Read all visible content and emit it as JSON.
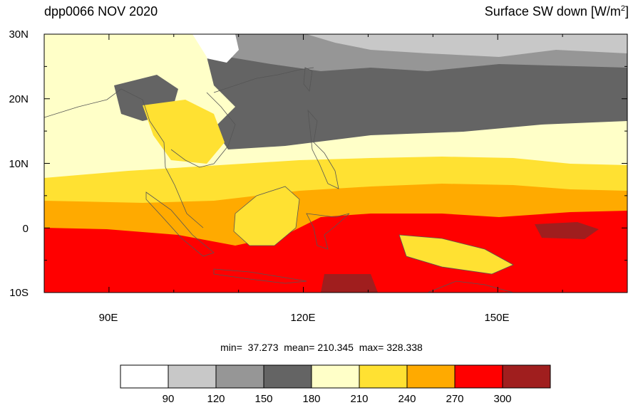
{
  "header": {
    "title_left": "dpp0066 NOV 2020",
    "title_right_main": "Surface SW down [W/m",
    "title_right_sup": "2",
    "title_right_end": "]"
  },
  "stats": {
    "text": "min=  37.273  mean= 210.345  max= 328.338"
  },
  "axes": {
    "lat_labels": [
      "30N",
      "20N",
      "10N",
      "0",
      "10S"
    ],
    "lon_labels": [
      "90E",
      "120E",
      "150E"
    ]
  },
  "colorbar": {
    "tick_labels": [
      "90",
      "120",
      "150",
      "180",
      "210",
      "240",
      "270",
      "300"
    ],
    "colors": [
      "#ffffff",
      "#c8c8c8",
      "#969696",
      "#646464",
      "#ffffc8",
      "#ffe132",
      "#ffaa00",
      "#ff0000",
      "#a01e1e"
    ]
  },
  "map_fields": {
    "band_colors": {
      "north_bg": "#646464",
      "north_light": "#969696",
      "north_pale": "#c8c8c8",
      "cloud_white": "#ffffff",
      "mid": "#ffffc8",
      "yellow": "#ffe132",
      "orange": "#ffaa00",
      "red": "#ff0000",
      "darkred": "#a01e1e",
      "coast": "#555555"
    }
  }
}
